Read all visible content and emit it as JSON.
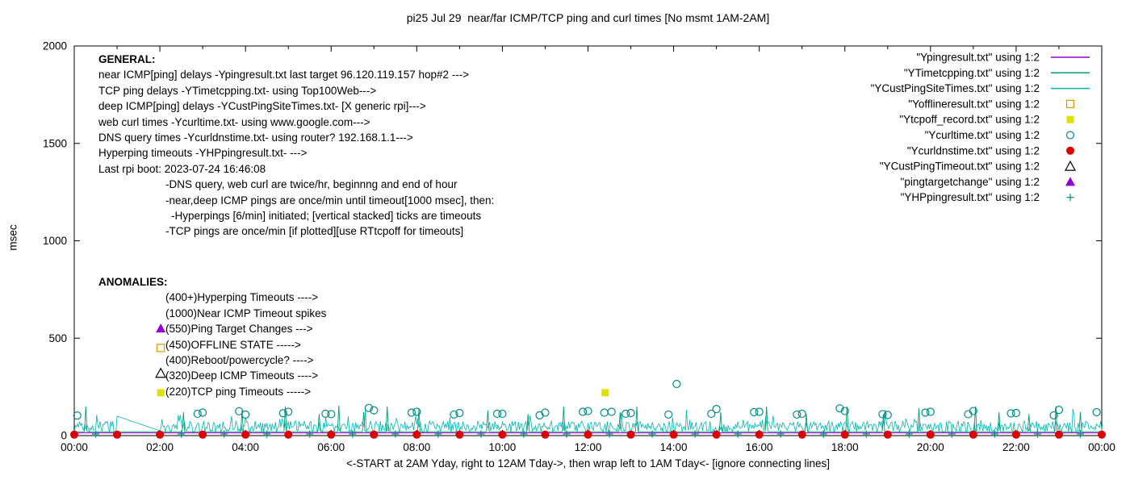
{
  "chart_data": {
    "type": "line",
    "title": "pi25 Jul 29  near/far ICMP/TCP ping and curl times [No msmt 1AM-2AM]",
    "xlabel": "<-START at 2AM Yday, right to 12AM Tday->, then wrap left to 1AM Tday<- [ignore connecting lines]",
    "ylabel": "msec",
    "ylim": [
      0,
      2000
    ],
    "xlim_hours": [
      0,
      24
    ],
    "grid": false,
    "legend_position": "top-right",
    "y_ticks": [
      0,
      500,
      1000,
      1500,
      2000
    ],
    "x_ticks": [
      {
        "h": 0,
        "label": "00:00"
      },
      {
        "h": 2,
        "label": "02:00"
      },
      {
        "h": 4,
        "label": "04:00"
      },
      {
        "h": 6,
        "label": "06:00"
      },
      {
        "h": 8,
        "label": "08:00"
      },
      {
        "h": 10,
        "label": "10:00"
      },
      {
        "h": 12,
        "label": "12:00"
      },
      {
        "h": 14,
        "label": "14:00"
      },
      {
        "h": 16,
        "label": "16:00"
      },
      {
        "h": 18,
        "label": "18:00"
      },
      {
        "h": 20,
        "label": "20:00"
      },
      {
        "h": 22,
        "label": "22:00"
      },
      {
        "h": 24,
        "label": "00:00"
      }
    ],
    "legend": [
      {
        "label": "\"Ypingresult.txt\" using 1:2",
        "sample": "line",
        "color": "#9400d3"
      },
      {
        "label": "\"YTimetcpping.txt\" using 1:2",
        "sample": "line",
        "color": "#009e73"
      },
      {
        "label": "\"YCustPingSiteTimes.txt\" using 1:2",
        "sample": "line",
        "color": "#00b5b5"
      },
      {
        "label": "\"Yofflineresult.txt\" using 1:2",
        "sample": "square-open",
        "color": "#e69500"
      },
      {
        "label": "\"Ytcpoff_record.txt\" using 1:2",
        "sample": "square-filled",
        "color": "#e0e000"
      },
      {
        "label": "\"Ycurltime.txt\" using 1:2",
        "sample": "circle-open",
        "color": "#008b8b"
      },
      {
        "label": "\"Ycurldnstime.txt\" using 1:2",
        "sample": "circle-filled",
        "color": "#dd0000"
      },
      {
        "label": "\"YCustPingTimeout.txt\" using 1:2",
        "sample": "triangle-open",
        "color": "#000000"
      },
      {
        "label": "\"pingtargetchange\" using 1:2",
        "sample": "triangle-filled",
        "color": "#9400d3"
      },
      {
        "label": "\"YHPpingresult.txt\" using 1:2",
        "sample": "plus",
        "color": "#008b8b"
      }
    ],
    "annotations": {
      "general": {
        "heading": "GENERAL:",
        "lines": [
          {
            "text": "near ICMP[ping] delays -Ypingresult.txt last target 96.120.119.157 hop#2 --->",
            "indent": 0
          },
          {
            "text": "TCP ping delays -YTimetcpping.txt- using Top100Web--->",
            "indent": 0
          },
          {
            "text": "deep ICMP[ping] delays -YCustPingSiteTimes.txt- [X generic rpi]--->",
            "indent": 0
          },
          {
            "text": "web curl times -Ycurltime.txt- using www.google.com--->",
            "indent": 0
          },
          {
            "text": "DNS query times -Ycurldnstime.txt- using router? 192.168.1.1--->",
            "indent": 0
          },
          {
            "text": "Hyperping timeouts -YHPpingresult.txt- --->",
            "indent": 0
          },
          {
            "text": "Last rpi boot: 2023-07-24 16:46:08",
            "indent": 0
          },
          {
            "text": "-DNS query, web curl are twice/hr, beginnng and end of hour",
            "indent": 1
          },
          {
            "text": "-near,deep ICMP pings are once/min until timeout[1000 msec], then:",
            "indent": 1
          },
          {
            "text": "-Hyperpings [6/min] initiated; [vertical stacked] ticks are timeouts",
            "indent": 2
          },
          {
            "text": "-TCP pings are once/min [if plotted][use RTtcpoff for timeouts]",
            "indent": 1
          }
        ]
      },
      "anomalies": {
        "heading": "ANOMALIES:",
        "lines": [
          {
            "text": "(400+)Hyperping Timeouts ---->",
            "marker": null
          },
          {
            "text": "(1000)Near ICMP Timeout spikes",
            "marker": null
          },
          {
            "text": "(550)Ping Target Changes --->",
            "marker": "triangle-filled",
            "marker_color": "#9400d3",
            "marker_y": 550
          },
          {
            "text": "(450)OFFLINE STATE ----->",
            "marker": "square-open",
            "marker_color": "#e69500",
            "marker_y": 450
          },
          {
            "text": "(400)Reboot/powercycle? ---->",
            "marker": null
          },
          {
            "text": "(320)Deep ICMP Timeouts ---->",
            "marker": "triangle-open",
            "marker_color": "#000000",
            "marker_y": 320
          },
          {
            "text": "(220)TCP ping Timeouts ----->",
            "marker": "square-filled",
            "marker_color": "#e0e000",
            "marker_y": 220
          }
        ]
      }
    },
    "series": {
      "near_icmp": {
        "name": "Ypingresult.txt",
        "style": "flat-line",
        "color": "#9400d3",
        "value_msec": 14
      },
      "tcp_ping": {
        "name": "YTimetcpping.txt",
        "style": "baseline-with-spikes",
        "color": "#009e73",
        "base_msec": 20,
        "spikes": [
          [
            0.27,
            150
          ],
          [
            2.55,
            120
          ],
          [
            3.92,
            130
          ],
          [
            4.93,
            150
          ],
          [
            5.72,
            110
          ],
          [
            6.18,
            155
          ],
          [
            6.76,
            120
          ],
          [
            7.31,
            150
          ],
          [
            8.05,
            140
          ],
          [
            9.66,
            130
          ],
          [
            10.6,
            110
          ],
          [
            11.43,
            150
          ],
          [
            12.75,
            120
          ],
          [
            13.14,
            150
          ],
          [
            15.1,
            120
          ],
          [
            16.17,
            150
          ],
          [
            17.1,
            110
          ],
          [
            18.05,
            150
          ],
          [
            18.9,
            110
          ],
          [
            19.73,
            140
          ],
          [
            21.05,
            150
          ],
          [
            21.6,
            120
          ],
          [
            22.3,
            110
          ],
          [
            22.93,
            150
          ],
          [
            23.5,
            120
          ]
        ]
      },
      "deep_icmp": {
        "name": "YCustPingSiteTimes.txt",
        "style": "noisy-line",
        "color": "#00b5b5",
        "base_msec": 15,
        "jitter_msec": 60,
        "spike_extra_msec": 75,
        "points_per_hour": 40,
        "gap_hours": [
          1,
          2
        ],
        "gap_edge_msec": [
          100,
          25
        ],
        "seed": 20230729
      },
      "curl": {
        "name": "Ycurltime.txt",
        "style": "points",
        "color": "#008b8b",
        "points": [
          [
            0.07,
            103
          ],
          [
            2.88,
            112
          ],
          [
            3.0,
            118
          ],
          [
            3.85,
            125
          ],
          [
            4.0,
            108
          ],
          [
            4.88,
            115
          ],
          [
            5.0,
            122
          ],
          [
            5.87,
            112
          ],
          [
            6.0,
            110
          ],
          [
            6.88,
            142
          ],
          [
            7.0,
            130
          ],
          [
            7.88,
            118
          ],
          [
            8.0,
            122
          ],
          [
            8.87,
            108
          ],
          [
            9.0,
            116
          ],
          [
            9.88,
            112
          ],
          [
            10.0,
            112
          ],
          [
            10.87,
            104
          ],
          [
            11.0,
            118
          ],
          [
            11.88,
            122
          ],
          [
            12.0,
            126
          ],
          [
            12.38,
            118
          ],
          [
            12.55,
            122
          ],
          [
            12.88,
            112
          ],
          [
            13.0,
            116
          ],
          [
            13.88,
            108
          ],
          [
            14.07,
            265
          ],
          [
            14.88,
            112
          ],
          [
            15.0,
            136
          ],
          [
            15.88,
            120
          ],
          [
            16.0,
            122
          ],
          [
            16.88,
            108
          ],
          [
            17.0,
            112
          ],
          [
            17.88,
            140
          ],
          [
            18.0,
            126
          ],
          [
            18.88,
            110
          ],
          [
            19.0,
            106
          ],
          [
            19.88,
            118
          ],
          [
            20.0,
            122
          ],
          [
            20.88,
            110
          ],
          [
            21.0,
            126
          ],
          [
            21.88,
            114
          ],
          [
            22.0,
            116
          ],
          [
            22.88,
            104
          ],
          [
            23.0,
            132
          ],
          [
            23.88,
            120
          ]
        ]
      },
      "dns": {
        "name": "Ycurldnstime.txt",
        "style": "points",
        "color": "#dd0000",
        "value_msec": 5,
        "hours": [
          0,
          1,
          2,
          3,
          4,
          5,
          6,
          7,
          8,
          9,
          10,
          11,
          12,
          13,
          14,
          15,
          16,
          17,
          18,
          19,
          20,
          21,
          22,
          23,
          24
        ]
      },
      "tcpoff": {
        "name": "Ytcpoff_record.txt",
        "style": "points",
        "color": "#e0e000",
        "points": [
          [
            12.4,
            220
          ]
        ]
      },
      "hyperping": {
        "name": "YHPpingresult.txt",
        "style": "plus-ticks",
        "color": "#008b8b",
        "value_msec": 8,
        "hours": [
          0.5,
          2.5,
          3.5,
          4.5,
          5.5,
          6.5,
          7.5,
          8.5,
          9.5,
          10.5,
          11.5,
          12.5,
          13.5,
          14.5,
          15.5,
          16.5,
          17.5,
          18.5,
          19.5,
          20.5,
          21.5,
          22.5,
          23.5
        ]
      },
      "offline": {
        "name": "Yofflineresult.txt",
        "style": "points",
        "color": "#e69500",
        "points": []
      },
      "cust_ping_timeout": {
        "name": "YCustPingTimeout.txt",
        "style": "points",
        "color": "#000000",
        "points": []
      },
      "ping_target_change": {
        "name": "pingtargetchange",
        "style": "points",
        "color": "#9400d3",
        "points": []
      }
    }
  }
}
